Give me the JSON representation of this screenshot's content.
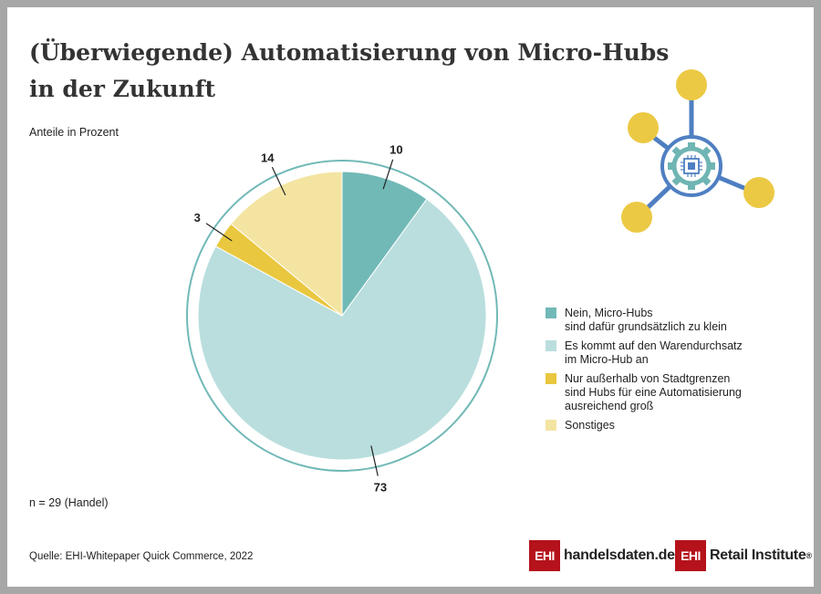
{
  "title_line1": "(Überwiegende) Automatisierung von Micro-Hubs",
  "title_line2": "in der Zukunft",
  "subtitle": "Anteile in Prozent",
  "chart_data": {
    "type": "pie",
    "unit": "Prozent",
    "slices": [
      {
        "label": "Nein, Micro-Hubs\nsind dafür grundsätzlich zu klein",
        "value": 10,
        "color": "#71b9b7"
      },
      {
        "label": "Es kommt auf den Warendurchsatz\nim Micro-Hub an",
        "value": 73,
        "color": "#b9dedd"
      },
      {
        "label": "Nur außerhalb von Stadtgrenzen\nsind Hubs für eine Automatisierung\nausreichend groß",
        "value": 3,
        "color": "#e9c73f"
      },
      {
        "label": "Sonstiges",
        "value": 14,
        "color": "#f4e4a2"
      }
    ],
    "value_labels": [
      "10",
      "73",
      "3",
      "14"
    ],
    "ring_color": "#71b9b7",
    "legend_position": "right"
  },
  "note": "n = 29 (Handel)",
  "source": "Quelle: EHI-Whitepaper Quick Commerce, 2022",
  "logos": {
    "ehi_mark": "EHI",
    "handelsdaten": "handelsdaten.de",
    "retail_institute": "Retail Institute",
    "registered": "®"
  },
  "icon_name": "network-chip-icon",
  "colors": {
    "brand_red": "#b5121b",
    "icon_blue": "#4f7fc2",
    "icon_yellow": "#ecc944",
    "icon_teal": "#6fb5b3"
  }
}
